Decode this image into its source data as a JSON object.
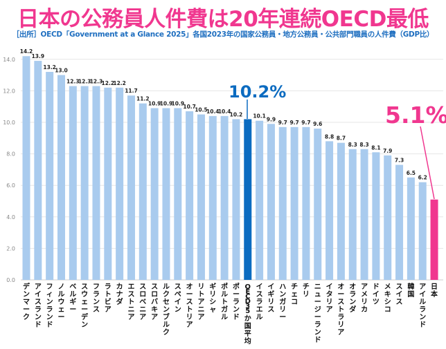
{
  "title": "日本の公務員人件費は20年連続OECD最低",
  "subtitle": "［出所］OECD「Government at a Glance 2025」各国2023年の国家公務員・地方公務員・公共部門職員の人件費（GDP比）",
  "colors": {
    "bar": "#a9cbee",
    "oecd_average": "#0b6bc0",
    "japan": "#f0378f",
    "title": "#f0378f",
    "subtitle": "#1f6fc0"
  },
  "chart_data": {
    "type": "bar",
    "title": "日本の公務員人件費は20年連続OECD最低",
    "ylim": [
      0,
      14.2
    ],
    "yticks": [
      "0.0",
      "2.0",
      "4.0",
      "6.0",
      "8.0",
      "10.0",
      "12.0",
      "14.0"
    ],
    "grid": true,
    "categories": [
      "デンマーク",
      "アイスランド",
      "フィンランド",
      "ノルウェー",
      "ベルギー",
      "スウェーデン",
      "フランス",
      "ラトビア",
      "カナダ",
      "エストニア",
      "スロベニア",
      "スロバキア",
      "ルクセンブルク",
      "スペイン",
      "オーストリア",
      "リトアニア",
      "ギリシャ",
      "ポルトガル",
      "ポーランド",
      "OECD35か国平均",
      "イスラエル",
      "イギリス",
      "ハンガリー",
      "チェコ",
      "チリ",
      "ニュージーランド",
      "イタリア",
      "オーストラリア",
      "オランダ",
      "アメリカ",
      "ドイツ",
      "メキシコ",
      "スイス",
      "韓国",
      "アイルランド",
      "日本"
    ],
    "values": [
      14.2,
      13.9,
      13.2,
      13.0,
      12.3,
      12.3,
      12.3,
      12.2,
      12.2,
      11.7,
      11.2,
      10.9,
      10.9,
      10.9,
      10.7,
      10.5,
      10.4,
      10.4,
      10.2,
      10.2,
      10.1,
      9.9,
      9.7,
      9.7,
      9.7,
      9.6,
      8.8,
      8.7,
      8.3,
      8.3,
      8.1,
      7.9,
      7.3,
      6.5,
      6.2,
      5.1
    ],
    "highlight": {
      "oecd_index": 19,
      "japan_index": 35
    },
    "annotations": {
      "oecd": "10.2%",
      "japan": "5.1%"
    }
  }
}
